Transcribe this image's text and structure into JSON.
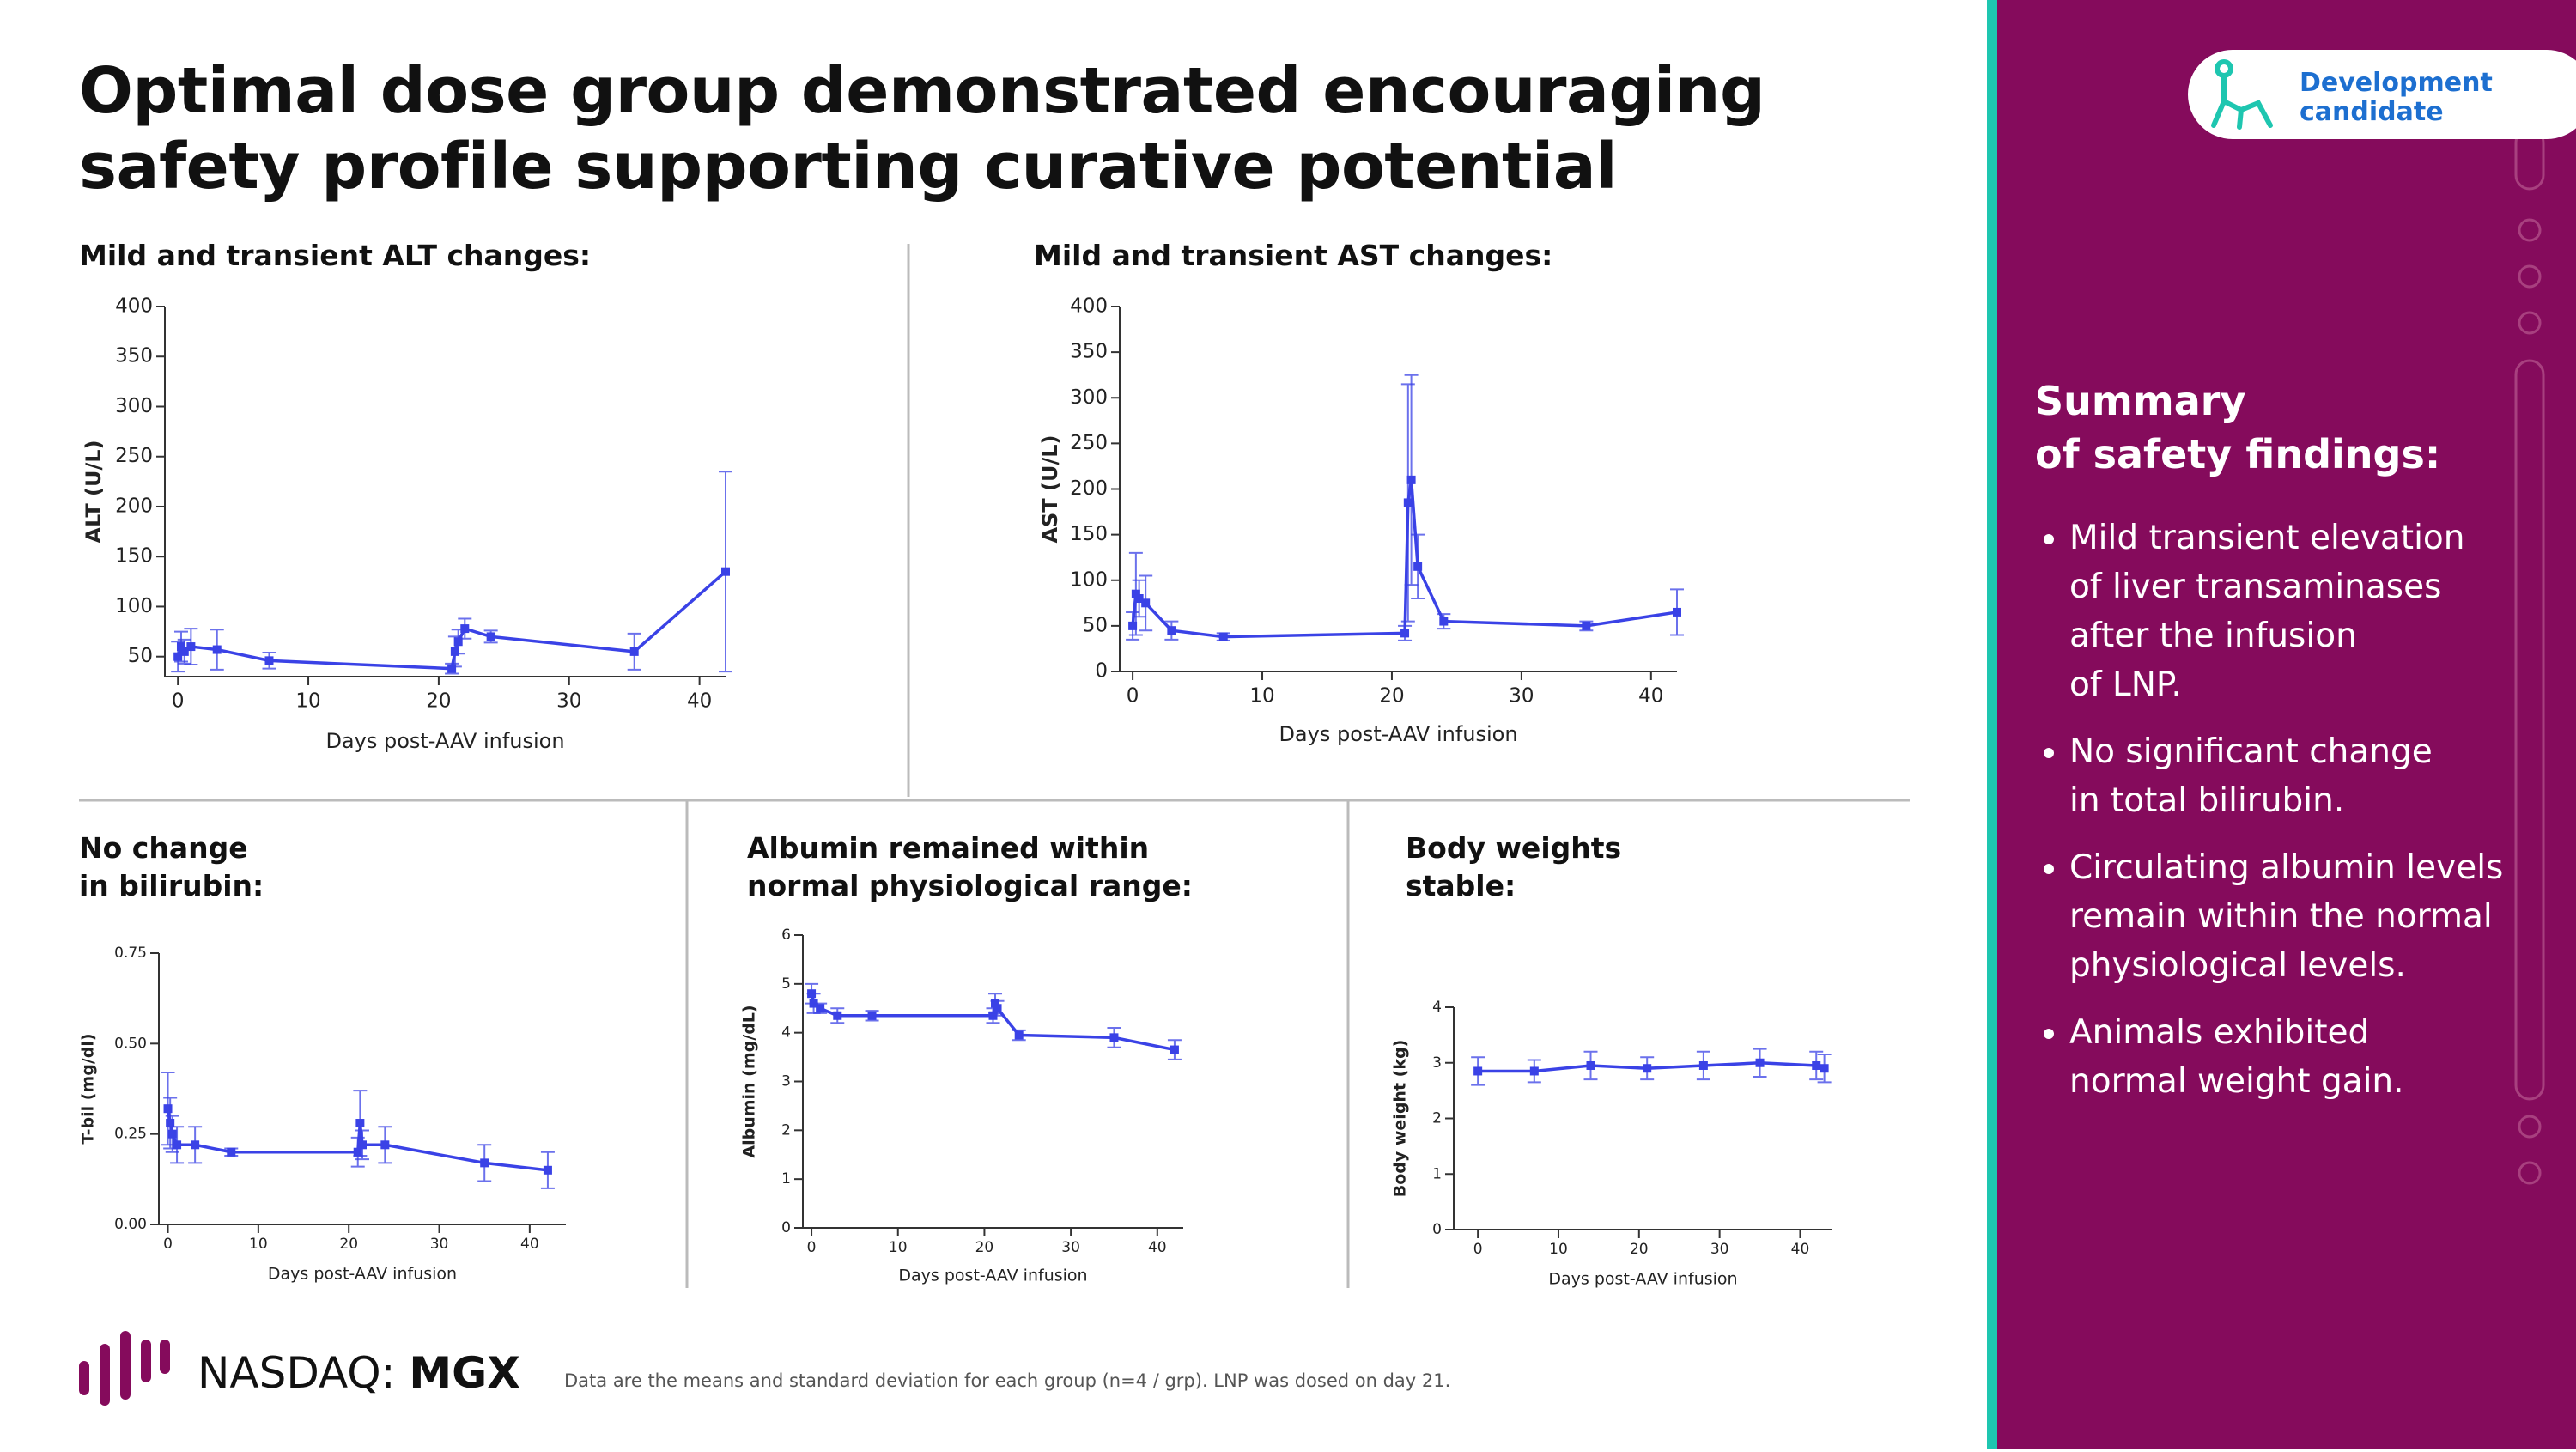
{
  "header": {
    "title": "Optimal dose group demonstrated encouraging\nsafety profile supporting curative potential"
  },
  "badge": {
    "text": "Development\ncandidate"
  },
  "chart_data": [
    {
      "type": "line",
      "title": "Mild and transient ALT changes:",
      "xlabel": "Days post-AAV infusion",
      "ylabel": "ALT (U/L)",
      "color": "#3a42e6",
      "x": [
        0,
        0.25,
        0.5,
        1,
        3,
        7,
        21,
        21.25,
        21.5,
        22,
        24,
        35,
        42
      ],
      "values": [
        50,
        60,
        55,
        60,
        57,
        46,
        38,
        55,
        65,
        78,
        70,
        55,
        135
      ],
      "errors": [
        15,
        15,
        12,
        18,
        20,
        8,
        5,
        15,
        12,
        10,
        6,
        18,
        100
      ],
      "xlim": [
        -1,
        42
      ],
      "ylim": [
        30,
        400
      ],
      "xticks": [
        0,
        10,
        20,
        30,
        40
      ],
      "yticks": [
        50,
        100,
        150,
        200,
        250,
        300,
        350,
        400
      ]
    },
    {
      "type": "line",
      "title": "Mild and transient AST changes:",
      "xlabel": "Days post-AAV infusion",
      "ylabel": "AST (U/L)",
      "color": "#3a42e6",
      "x": [
        0,
        0.25,
        0.5,
        1,
        3,
        7,
        21,
        21.25,
        21.5,
        22,
        24,
        35,
        42
      ],
      "values": [
        50,
        85,
        80,
        75,
        45,
        38,
        42,
        185,
        210,
        115,
        55,
        50,
        65
      ],
      "errors": [
        15,
        45,
        20,
        30,
        10,
        4,
        8,
        130,
        115,
        35,
        8,
        5,
        25
      ],
      "xlim": [
        -1,
        42
      ],
      "ylim": [
        0,
        400
      ],
      "xticks": [
        0,
        10,
        20,
        30,
        40
      ],
      "yticks": [
        0,
        50,
        100,
        150,
        200,
        250,
        300,
        350,
        400
      ]
    },
    {
      "type": "line",
      "title": "No change\nin bilirubin:",
      "xlabel": "Days post-AAV infusion",
      "ylabel": "T-bil (mg/dl)",
      "color": "#3a42e6",
      "x": [
        0,
        0.25,
        0.5,
        1,
        3,
        7,
        21,
        21.25,
        21.5,
        24,
        35,
        42
      ],
      "values": [
        0.32,
        0.28,
        0.25,
        0.22,
        0.22,
        0.2,
        0.2,
        0.28,
        0.22,
        0.22,
        0.17,
        0.15
      ],
      "errors": [
        0.1,
        0.07,
        0.05,
        0.05,
        0.05,
        0.01,
        0.04,
        0.09,
        0.04,
        0.05,
        0.05,
        0.05
      ],
      "xlim": [
        -1,
        44
      ],
      "ylim": [
        0,
        0.75
      ],
      "xticks": [
        0,
        10,
        20,
        30,
        40
      ],
      "yticks": [
        {
          "value": 0,
          "label": "0.00"
        },
        0.25,
        {
          "value": 0.5,
          "label": "0.50"
        },
        0.75
      ]
    },
    {
      "type": "line",
      "title": "Albumin remained within\nnormal physiological range:",
      "xlabel": "Days post-AAV infusion",
      "ylabel": "Albumin (mg/dL)",
      "color": "#3a42e6",
      "x": [
        0,
        0.25,
        1,
        3,
        7,
        21,
        21.25,
        21.5,
        24,
        35,
        42
      ],
      "values": [
        4.8,
        4.6,
        4.5,
        4.35,
        4.35,
        4.35,
        4.6,
        4.5,
        3.95,
        3.9,
        3.65
      ],
      "errors": [
        0.2,
        0.2,
        0.1,
        0.15,
        0.1,
        0.15,
        0.2,
        0.15,
        0.1,
        0.2,
        0.2
      ],
      "xlim": [
        -1,
        43
      ],
      "ylim": [
        0,
        6
      ],
      "xticks": [
        0,
        10,
        20,
        30,
        40
      ],
      "yticks": [
        0,
        1,
        2,
        3,
        4,
        5,
        6
      ]
    },
    {
      "type": "line",
      "title": "Body weights\nstable:",
      "xlabel": "Days post-AAV infusion",
      "ylabel": "Body weight (kg)",
      "color": "#3a42e6",
      "x": [
        0,
        7,
        14,
        21,
        28,
        35,
        42,
        43
      ],
      "values": [
        2.85,
        2.85,
        2.95,
        2.9,
        2.95,
        3.0,
        2.95,
        2.9
      ],
      "errors": [
        0.25,
        0.2,
        0.25,
        0.2,
        0.25,
        0.25,
        0.25,
        0.25
      ],
      "xlim": [
        -3,
        44
      ],
      "ylim": [
        0,
        4
      ],
      "xticks": [
        0,
        10,
        20,
        30,
        40
      ],
      "yticks": [
        0,
        1,
        2,
        3,
        4
      ]
    }
  ],
  "footer": {
    "ticker_prefix": "NASDAQ:",
    "ticker": "MGX",
    "note": "Data are the means and standard deviation for each group (n=4 / grp). LNP was dosed on day 21."
  },
  "summary": {
    "title": "Summary\nof safety findings:",
    "bullets": [
      "Mild transient elevation\nof liver transaminases\nafter the infusion\nof LNP.",
      "No significant change\nin total bilirubin.",
      "Circulating albumin levels\nremain within the normal\nphysiological levels.",
      "Animals exhibited\nnormal weight gain."
    ]
  }
}
